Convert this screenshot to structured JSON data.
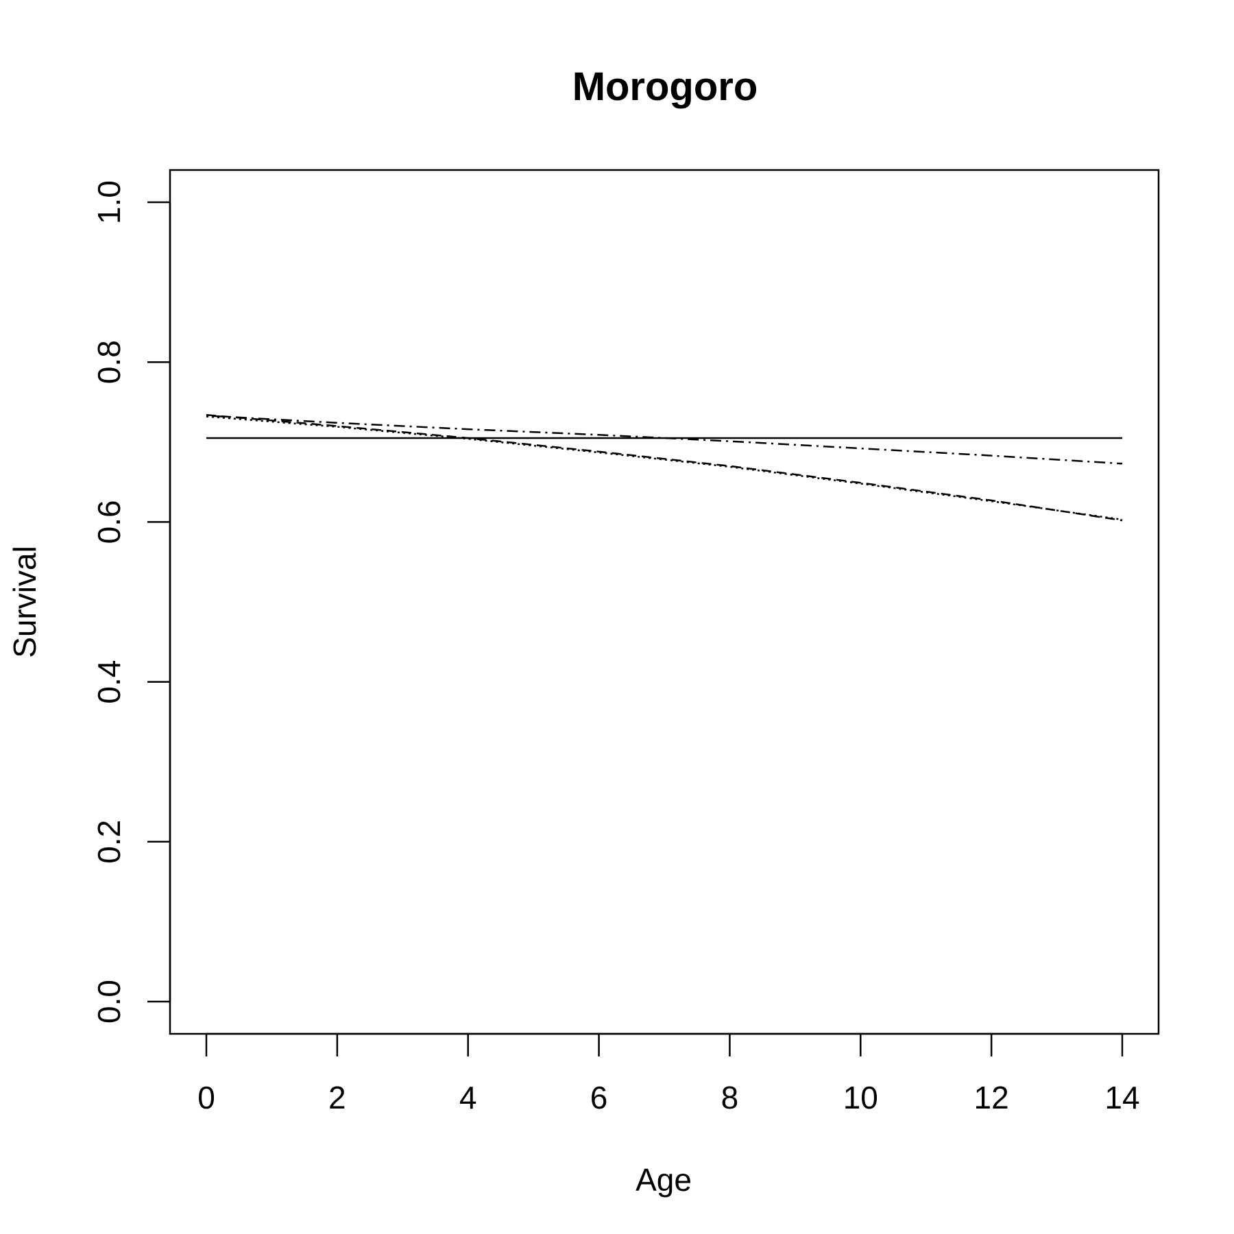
{
  "chart_data": {
    "type": "line",
    "title": "Morogoro",
    "xlabel": "Age",
    "ylabel": "Survival",
    "xlim": [
      0,
      14
    ],
    "ylim": [
      0.0,
      1.0
    ],
    "x_ticks": [
      "0",
      "2",
      "4",
      "6",
      "8",
      "10",
      "12",
      "14"
    ],
    "y_ticks": [
      "0.0",
      "0.2",
      "0.4",
      "0.6",
      "0.8",
      "1.0"
    ],
    "grid": false,
    "legend": "none",
    "series": [
      {
        "style": "solid",
        "x": [
          0,
          14
        ],
        "y": [
          0.705,
          0.705
        ]
      },
      {
        "style": "dashed",
        "x": [
          0,
          2,
          4,
          6,
          8,
          10,
          12,
          14
        ],
        "y": [
          0.734,
          0.72,
          0.705,
          0.688,
          0.67,
          0.649,
          0.627,
          0.602
        ]
      },
      {
        "style": "dotted",
        "x": [
          0,
          2,
          4,
          6,
          8,
          10,
          12,
          14
        ],
        "y": [
          0.732,
          0.719,
          0.704,
          0.687,
          0.669,
          0.648,
          0.626,
          0.603
        ]
      },
      {
        "style": "dashdot",
        "x": [
          0,
          2,
          4,
          6,
          8,
          10,
          12,
          14
        ],
        "y": [
          0.733,
          0.724,
          0.716,
          0.709,
          0.701,
          0.692,
          0.683,
          0.673
        ]
      }
    ]
  }
}
